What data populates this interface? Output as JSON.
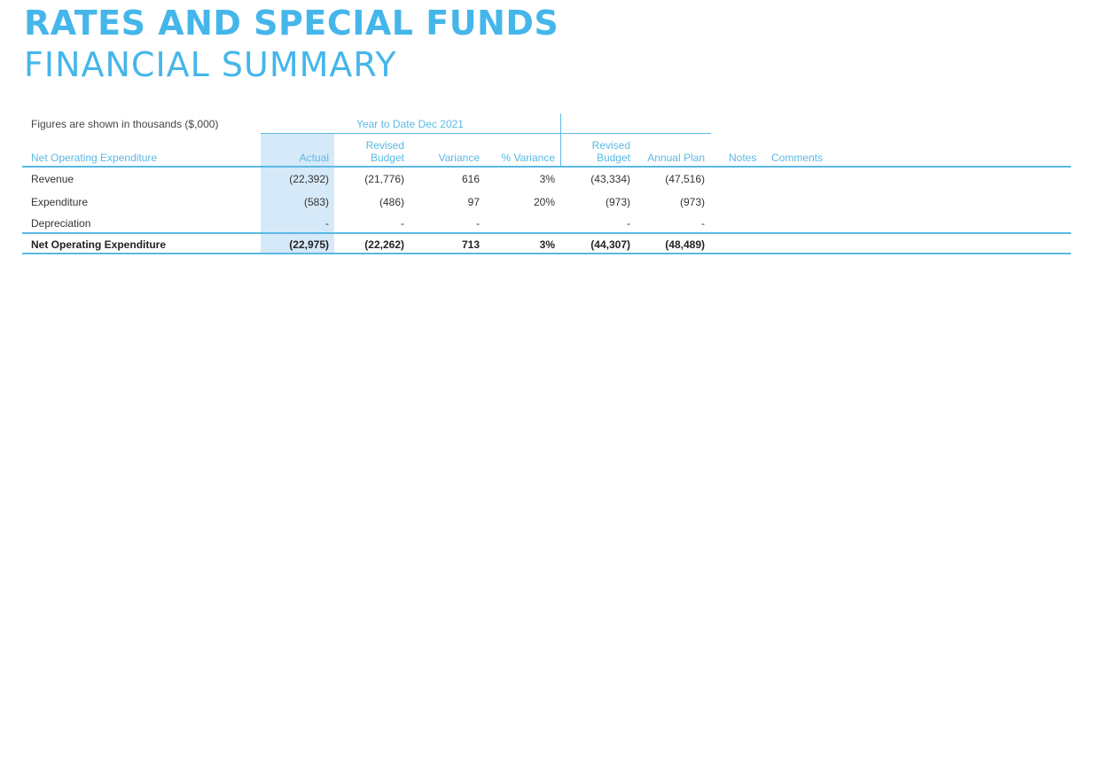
{
  "title": {
    "line1": "RATES AND SPECIAL FUNDS",
    "line2": "FINANCIAL SUMMARY"
  },
  "table": {
    "note": "Figures are shown in thousands ($,000)",
    "group_header": "Year to Date  Dec 2021",
    "headers": {
      "label": "Net Operating Expenditure",
      "actual": "Actual",
      "revised_budget_1": "Revised",
      "revised_budget_2": "Budget",
      "variance": "Variance",
      "pct_variance": "% Variance",
      "full_revised_budget_1": "Revised",
      "full_revised_budget_2": "Budget",
      "annual_plan": "Annual Plan",
      "notes": "Notes",
      "comments": "Comments"
    },
    "rows": [
      {
        "label": "Revenue",
        "actual": "(22,392)",
        "revised_budget": "(21,776)",
        "variance": "616",
        "pct_variance": "3%",
        "full_revised_budget": "(43,334)",
        "annual_plan": "(47,516)"
      },
      {
        "label": "Expenditure",
        "actual": "(583)",
        "revised_budget": "(486)",
        "variance": "97",
        "pct_variance": "20%",
        "full_revised_budget": "(973)",
        "annual_plan": "(973)"
      },
      {
        "label": "Depreciation",
        "actual": "-",
        "revised_budget": "-",
        "variance": "-",
        "pct_variance": "",
        "full_revised_budget": "-",
        "annual_plan": "-"
      }
    ],
    "total": {
      "label": "Net Operating Expenditure",
      "actual": "(22,975)",
      "revised_budget": "(22,262)",
      "variance": "713",
      "pct_variance": "3%",
      "full_revised_budget": "(44,307)",
      "annual_plan": "(48,489)"
    }
  },
  "colors": {
    "accent": "#45b6ea",
    "header_text": "#5ab9e4",
    "actual_column_shade": "#d6e9f8"
  }
}
